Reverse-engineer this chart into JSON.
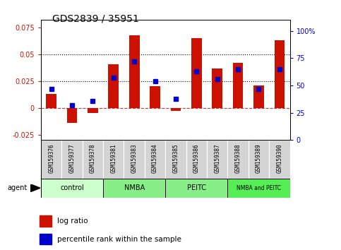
{
  "title": "GDS2839 / 35951",
  "samples": [
    "GSM159376",
    "GSM159377",
    "GSM159378",
    "GSM159381",
    "GSM159383",
    "GSM159384",
    "GSM159385",
    "GSM159386",
    "GSM159387",
    "GSM159388",
    "GSM159389",
    "GSM159390"
  ],
  "log_ratio": [
    0.013,
    -0.014,
    -0.005,
    0.041,
    0.068,
    0.02,
    -0.003,
    0.065,
    0.037,
    0.042,
    0.021,
    0.063
  ],
  "percentile_rank": [
    47,
    32,
    36,
    57,
    72,
    54,
    38,
    63,
    56,
    65,
    47,
    65
  ],
  "groups": [
    {
      "label": "control",
      "start": 0,
      "end": 3
    },
    {
      "label": "NMBA",
      "start": 3,
      "end": 6
    },
    {
      "label": "PEITC",
      "start": 6,
      "end": 9
    },
    {
      "label": "NMBA and PEITC",
      "start": 9,
      "end": 12
    }
  ],
  "group_colors": [
    "#ccffcc",
    "#88ee88",
    "#88ee88",
    "#55ee55"
  ],
  "bar_color": "#cc1100",
  "dot_color": "#0000cc",
  "left_ylim": [
    -0.03,
    0.082
  ],
  "right_ylim": [
    0,
    110
  ],
  "left_yticks": [
    -0.025,
    0,
    0.025,
    0.05,
    0.075
  ],
  "right_yticks": [
    0,
    25,
    50,
    75,
    100
  ],
  "left_ytick_labels": [
    "-0.025",
    "0",
    "0.025",
    "0.05",
    "0.075"
  ],
  "right_ytick_labels": [
    "0",
    "25",
    "50",
    "75",
    "100%"
  ],
  "hlines": [
    0.025,
    0.05
  ],
  "hline_zero_color": "#cc3333",
  "background_color": "#ffffff",
  "bar_width": 0.5
}
